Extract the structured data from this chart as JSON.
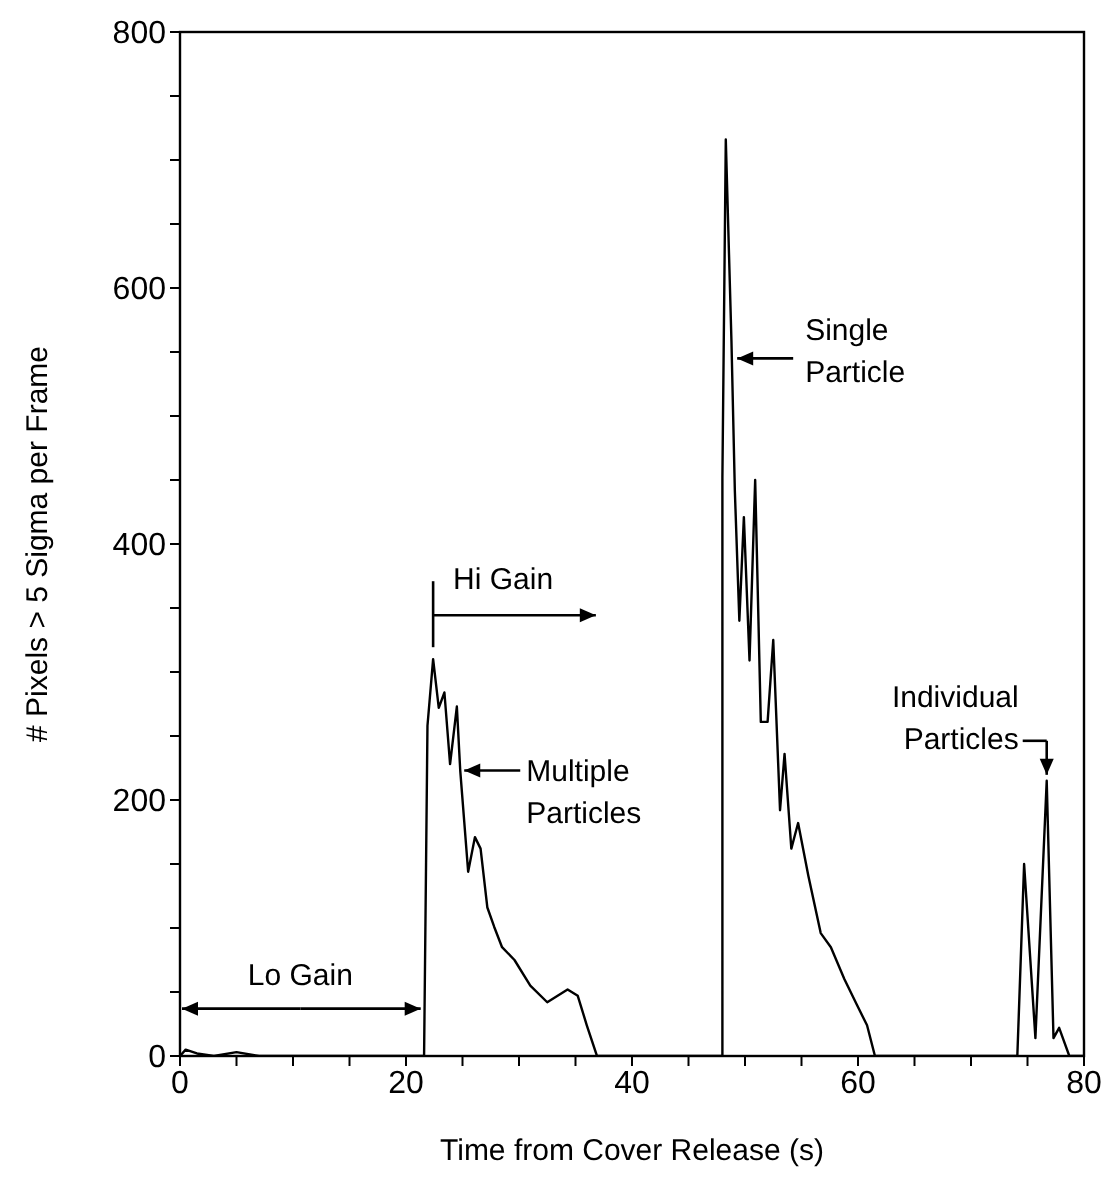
{
  "chart_data": {
    "type": "line",
    "xlabel": "Time from Cover Release (s)",
    "ylabel": "# Pixels > 5 Sigma per Frame",
    "xlim": [
      0,
      80
    ],
    "ylim": [
      0,
      800
    ],
    "xticks": [
      0,
      {
        "value": 5,
        "label": null
      },
      {
        "value": 10,
        "label": null
      },
      {
        "value": 15,
        "label": null
      },
      20,
      {
        "value": 25,
        "label": null
      },
      {
        "value": 30,
        "label": null
      },
      {
        "value": 35,
        "label": null
      },
      40,
      {
        "value": 45,
        "label": null
      },
      {
        "value": 50,
        "label": null
      },
      {
        "value": 55,
        "label": null
      },
      60,
      {
        "value": 65,
        "label": null
      },
      {
        "value": 70,
        "label": null
      },
      {
        "value": 75,
        "label": null
      },
      80
    ],
    "yticks": [
      0,
      {
        "value": 50,
        "label": null
      },
      {
        "value": 100,
        "label": null
      },
      {
        "value": 150,
        "label": null
      },
      200,
      {
        "value": 250,
        "label": null
      },
      {
        "value": 300,
        "label": null
      },
      {
        "value": 350,
        "label": null
      },
      400,
      {
        "value": 450,
        "label": null
      },
      {
        "value": 500,
        "label": null
      },
      {
        "value": 550,
        "label": null
      },
      600,
      {
        "value": 650,
        "label": null
      },
      {
        "value": 700,
        "label": null
      },
      {
        "value": 750,
        "label": null
      },
      800
    ],
    "marker": "none",
    "line_style": "solid",
    "series": [
      {
        "color": "#000000",
        "x": [
          0,
          0.5,
          1.5,
          3,
          5,
          7,
          21.6,
          21.9,
          22.4,
          22.9,
          23.4,
          23.9,
          24.5,
          24.8,
          25.5,
          26.1,
          26.6,
          27.2,
          27.8,
          28.5,
          29.6,
          31.0,
          32.5,
          34.3,
          35.2,
          36.0,
          36.9,
          48.0,
          48.0,
          48.3,
          48.8,
          49.1,
          49.5,
          49.9,
          50.4,
          50.9,
          51.4,
          52.0,
          52.5,
          53.1,
          53.5,
          54.1,
          54.7,
          55.6,
          56.7,
          57.6,
          58.8,
          59.9,
          60.8,
          61.5,
          74.1,
          74.7,
          75.7,
          76.7,
          77.3,
          77.8,
          78.7,
          80
        ],
        "values": [
          0,
          5,
          2,
          0,
          3,
          0,
          0,
          258,
          310,
          272,
          284,
          228,
          273,
          223,
          144,
          171,
          162,
          116,
          101,
          85,
          75,
          55,
          42,
          52,
          47,
          24,
          0,
          0,
          452,
          716,
          559,
          442,
          340,
          421,
          309,
          450,
          261,
          261,
          325,
          192,
          236,
          162,
          182,
          141,
          96,
          85,
          60,
          40,
          24,
          0,
          0,
          150,
          14,
          215,
          14,
          22,
          0,
          0
        ]
      }
    ],
    "annotations": [
      {
        "text": "Lo Gain",
        "x": 21.3,
        "y": 37
      },
      {
        "text": "Hi Gain",
        "x": 22.4,
        "y": 310
      },
      {
        "text": "Multiple Particles",
        "x": 24.8,
        "y": 223
      },
      {
        "text": "Single Particle",
        "x": 48.6,
        "y": 545
      },
      {
        "text": "Individual Particles",
        "x": 76.7,
        "y": 215
      }
    ]
  }
}
